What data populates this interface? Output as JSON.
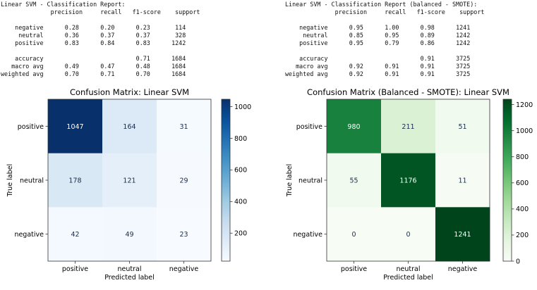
{
  "reports": [
    {
      "title": "Linear SVM - Classification Report:",
      "header": [
        "precision",
        "recall",
        "f1-score",
        "support"
      ],
      "rows": [
        {
          "label": "negative",
          "values": [
            "0.28",
            "0.20",
            "0.23",
            "114"
          ]
        },
        {
          "label": "neutral",
          "values": [
            "0.36",
            "0.37",
            "0.37",
            "328"
          ]
        },
        {
          "label": "positive",
          "values": [
            "0.83",
            "0.84",
            "0.83",
            "1242"
          ]
        }
      ],
      "summary": [
        {
          "label": "accuracy",
          "values": [
            "",
            "",
            "0.71",
            "1684"
          ]
        },
        {
          "label": "macro avg",
          "values": [
            "0.49",
            "0.47",
            "0.48",
            "1684"
          ]
        },
        {
          "label": "weighted avg",
          "values": [
            "0.70",
            "0.71",
            "0.70",
            "1684"
          ]
        }
      ]
    },
    {
      "title": "Linear SVM - Classification Report (balanced - SMOTE):",
      "header": [
        "precision",
        "recall",
        "f1-score",
        "support"
      ],
      "rows": [
        {
          "label": "negative",
          "values": [
            "0.95",
            "1.00",
            "0.98",
            "1241"
          ]
        },
        {
          "label": "neutral",
          "values": [
            "0.85",
            "0.95",
            "0.89",
            "1242"
          ]
        },
        {
          "label": "positive",
          "values": [
            "0.95",
            "0.79",
            "0.86",
            "1242"
          ]
        }
      ],
      "summary": [
        {
          "label": "accuracy",
          "values": [
            "",
            "",
            "0.91",
            "3725"
          ]
        },
        {
          "label": "macro avg",
          "values": [
            "0.92",
            "0.91",
            "0.91",
            "3725"
          ]
        },
        {
          "label": "weighted avg",
          "values": [
            "0.92",
            "0.91",
            "0.91",
            "3725"
          ]
        }
      ]
    }
  ],
  "chart_data": [
    {
      "type": "heatmap",
      "title": "Confusion Matrix: Linear SVM",
      "xlabel": "Predicted label",
      "ylabel": "True label",
      "x_categories": [
        "positive",
        "neutral",
        "negative"
      ],
      "y_categories": [
        "positive",
        "neutral",
        "negative"
      ],
      "values": [
        [
          1047,
          164,
          31
        ],
        [
          178,
          121,
          29
        ],
        [
          42,
          49,
          23
        ]
      ],
      "colormap": "Blues",
      "colorbar_ticks": [
        200,
        400,
        600,
        800,
        1000
      ],
      "color_range": [
        23,
        1047
      ]
    },
    {
      "type": "heatmap",
      "title": "Confusion Matrix (Balanced - SMOTE): Linear SVM",
      "xlabel": "Predicted label",
      "ylabel": "True label",
      "x_categories": [
        "positive",
        "neutral",
        "negative"
      ],
      "y_categories": [
        "positive",
        "neutral",
        "negative"
      ],
      "values": [
        [
          980,
          211,
          51
        ],
        [
          55,
          1176,
          11
        ],
        [
          0,
          0,
          1241
        ]
      ],
      "colormap": "Greens",
      "colorbar_ticks": [
        0,
        200,
        400,
        600,
        800,
        1000,
        1200
      ],
      "color_range": [
        0,
        1241
      ]
    }
  ]
}
